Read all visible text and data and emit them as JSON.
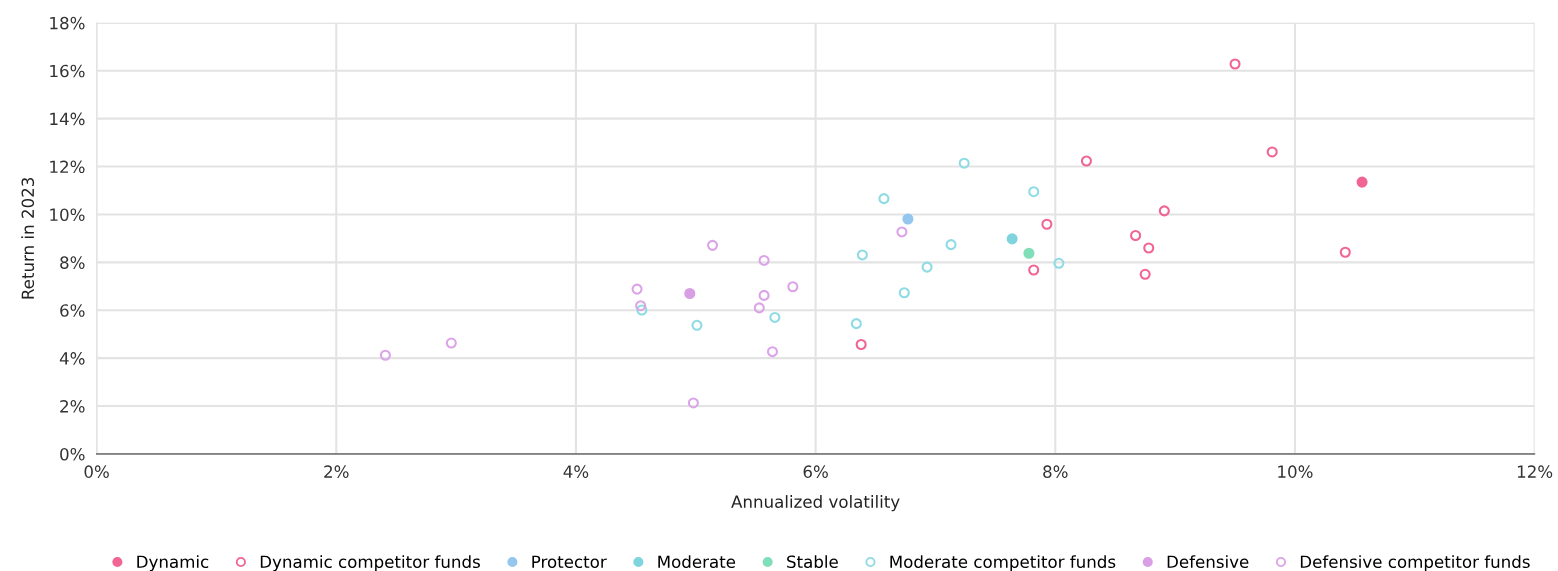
{
  "chart_data": {
    "type": "scatter",
    "xlabel": "Annualized volatility",
    "ylabel": "Return in 2023",
    "xlim": [
      0,
      12
    ],
    "ylim": [
      0,
      18
    ],
    "xticks": [
      {
        "value": 0,
        "label": "0%"
      },
      {
        "value": 2,
        "label": "2%"
      },
      {
        "value": 4,
        "label": "4%"
      },
      {
        "value": 6,
        "label": "6%"
      },
      {
        "value": 8,
        "label": "8%"
      },
      {
        "value": 10,
        "label": "10%"
      },
      {
        "value": 12,
        "label": "12%"
      }
    ],
    "yticks": [
      {
        "value": 0,
        "label": "0%"
      },
      {
        "value": 2,
        "label": "2%"
      },
      {
        "value": 4,
        "label": "4%"
      },
      {
        "value": 6,
        "label": "6%"
      },
      {
        "value": 8,
        "label": "8%"
      },
      {
        "value": 10,
        "label": "10%"
      },
      {
        "value": 12,
        "label": "12%"
      },
      {
        "value": 14,
        "label": "14%"
      },
      {
        "value": 16,
        "label": "16%"
      },
      {
        "value": 18,
        "label": "18%"
      }
    ],
    "grid": true,
    "legend": "bottom",
    "series": [
      {
        "name": "Dynamic",
        "color": "#f06595",
        "marker": "circle",
        "x": [
          10.56
        ],
        "values": [
          11.35
        ]
      },
      {
        "name": "Dynamic competitor funds",
        "color": "#f06595",
        "marker": "open circle",
        "x": [
          9.5,
          9.81,
          8.26,
          8.91,
          7.93,
          8.67,
          8.78,
          10.42,
          8.75,
          7.82,
          6.38
        ],
        "values": [
          16.28,
          12.61,
          12.23,
          10.15,
          9.59,
          9.12,
          8.6,
          8.42,
          7.5,
          7.68,
          4.57
        ]
      },
      {
        "name": "Protector",
        "color": "#94c6ee",
        "marker": "circle",
        "x": [
          6.77
        ],
        "values": [
          9.81
        ]
      },
      {
        "name": "Moderate",
        "color": "#80d4de",
        "marker": "circle",
        "x": [
          7.64
        ],
        "values": [
          8.98
        ]
      },
      {
        "name": "Stable",
        "color": "#80deb8",
        "marker": "circle",
        "x": [
          7.78
        ],
        "values": [
          8.38
        ]
      },
      {
        "name": "Moderate competitor funds",
        "color": "#8edbe4",
        "marker": "open circle",
        "x": [
          7.24,
          7.82,
          6.57,
          6.39,
          7.13,
          6.93,
          8.03,
          6.74,
          6.34,
          5.66,
          5.01,
          4.55
        ],
        "values": [
          12.14,
          10.95,
          10.66,
          8.31,
          8.74,
          7.8,
          7.96,
          6.73,
          5.44,
          5.7,
          5.37,
          6.01
        ]
      },
      {
        "name": "Defensive",
        "color": "#d99fe4",
        "marker": "circle",
        "x": [
          4.95
        ],
        "values": [
          6.7
        ]
      },
      {
        "name": "Defensive competitor funds",
        "color": "#dca4e8",
        "marker": "open circle",
        "x": [
          2.41,
          2.96,
          5.14,
          5.57,
          4.51,
          5.57,
          5.81,
          4.54,
          5.53,
          5.64,
          4.98,
          6.72
        ],
        "values": [
          4.12,
          4.63,
          8.71,
          8.08,
          6.88,
          6.62,
          6.98,
          6.19,
          6.1,
          4.27,
          2.13,
          9.27
        ]
      }
    ]
  }
}
